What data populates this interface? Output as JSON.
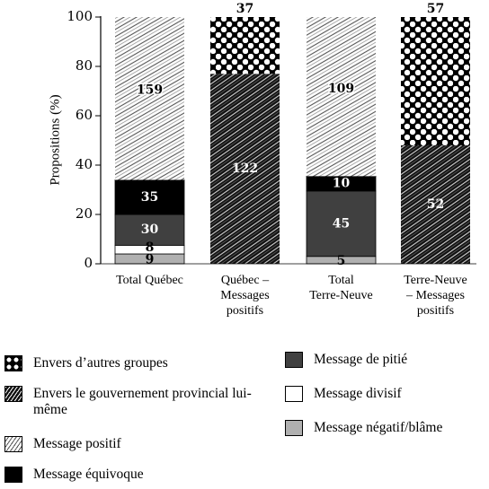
{
  "chart_data": {
    "type": "bar",
    "stacked": true,
    "ylabel": "Propositions (%)",
    "ylim": [
      0,
      100
    ],
    "yticks": [
      0,
      20,
      40,
      60,
      80,
      100
    ],
    "categories": [
      "Total Québec",
      "Québec – Messages positifs",
      "Total Terre-Neuve",
      "Terre-Neuve – Messages positifs"
    ],
    "category_lines": [
      [
        "Total Québec"
      ],
      [
        "Québec –",
        "Messages",
        "positifs"
      ],
      [
        "Total",
        "Terre-Neuve"
      ],
      [
        "Terre-Neuve",
        "– Messages",
        "positifs"
      ]
    ],
    "series": [
      {
        "key": "negatif",
        "name": "Message négatif/blâme",
        "values": [
          4,
          0,
          3,
          0
        ],
        "labels": [
          "9",
          "",
          "5",
          ""
        ]
      },
      {
        "key": "divisif",
        "name": "Message divisif",
        "values": [
          3.5,
          0,
          0,
          0
        ],
        "labels": [
          "8",
          "",
          "",
          ""
        ]
      },
      {
        "key": "pitie",
        "name": "Message de pitié",
        "values": [
          12.5,
          0,
          26.5,
          0
        ],
        "labels": [
          "30",
          "",
          "45",
          ""
        ]
      },
      {
        "key": "equivoque",
        "name": "Message équivoque",
        "values": [
          14,
          0,
          6,
          0
        ],
        "labels": [
          "35",
          "",
          "10",
          ""
        ]
      },
      {
        "key": "positif",
        "name": "Message positif",
        "values": [
          66,
          0,
          64.5,
          0
        ],
        "labels": [
          "159",
          "",
          "109",
          ""
        ]
      },
      {
        "key": "gouvernement",
        "name": "Envers le gouvernement provincial lui-même",
        "values": [
          0,
          77,
          0,
          48
        ],
        "labels": [
          "",
          "122",
          "",
          "52"
        ]
      },
      {
        "key": "autres",
        "name": "Envers d’autres groupes",
        "values": [
          0,
          23,
          0,
          52
        ],
        "labels": [
          "",
          "37",
          "",
          "57"
        ]
      }
    ],
    "legend": {
      "left": [
        {
          "key": "autres",
          "name": "Envers d’autres groupes"
        },
        {
          "key": "gouvernement",
          "name": "Envers le gouvernement provincial lui-même"
        },
        {
          "key": "positif",
          "name": "Message positif"
        },
        {
          "key": "equivoque",
          "name": "Message équivoque"
        }
      ],
      "right": [
        {
          "key": "pitie",
          "name": "Message de pitié"
        },
        {
          "key": "divisif",
          "name": "Message divisif"
        },
        {
          "key": "negatif",
          "name": "Message négatif/blâme"
        }
      ]
    },
    "grid": false
  }
}
